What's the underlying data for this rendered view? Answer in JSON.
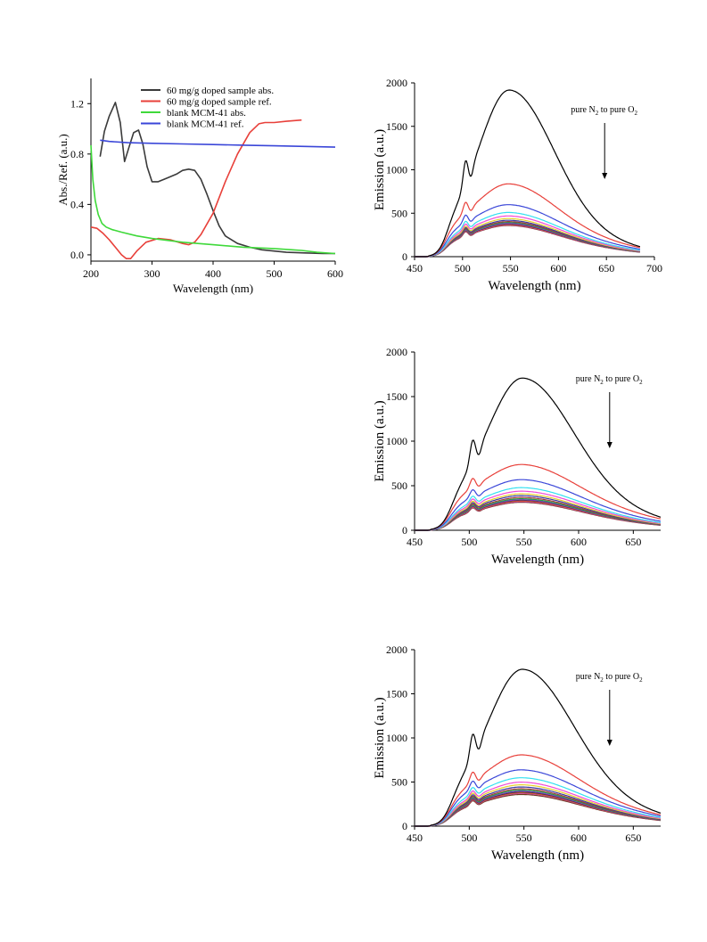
{
  "chart_data": [
    {
      "id": "absorption",
      "type": "line",
      "xlabel": "Wavelength (nm)",
      "ylabel": "Abs./Ref. (a.u.)",
      "xlim": [
        200,
        600
      ],
      "ylim": [
        -0.05,
        1.4
      ],
      "xticks": [
        200,
        300,
        400,
        500,
        600
      ],
      "yticks": [
        0.0,
        0.4,
        0.8,
        1.2
      ],
      "ytick_labels": [
        "0.0",
        "0.4",
        "0.8",
        "1.2"
      ],
      "legend_position": "top-right",
      "series": [
        {
          "name": "60 mg/g doped sample abs.",
          "color": "#3a3a3a",
          "x": [
            215,
            222,
            230,
            240,
            248,
            255,
            262,
            270,
            278,
            285,
            292,
            300,
            310,
            320,
            330,
            340,
            350,
            360,
            370,
            380,
            390,
            400,
            410,
            420,
            440,
            460,
            480,
            500,
            520,
            550,
            580,
            600
          ],
          "y": [
            0.78,
            0.98,
            1.1,
            1.21,
            1.05,
            0.74,
            0.85,
            0.97,
            0.99,
            0.88,
            0.7,
            0.58,
            0.58,
            0.6,
            0.62,
            0.64,
            0.67,
            0.68,
            0.67,
            0.6,
            0.48,
            0.35,
            0.23,
            0.15,
            0.09,
            0.06,
            0.04,
            0.03,
            0.02,
            0.015,
            0.01,
            0.01
          ]
        },
        {
          "name": "60 mg/g doped sample ref.",
          "color": "#e8403a",
          "x": [
            200,
            210,
            220,
            230,
            240,
            250,
            258,
            265,
            275,
            290,
            310,
            330,
            350,
            360,
            370,
            380,
            400,
            420,
            440,
            460,
            475,
            485,
            500,
            520,
            545
          ],
          "y": [
            0.22,
            0.21,
            0.17,
            0.12,
            0.06,
            0.0,
            -0.03,
            -0.03,
            0.03,
            0.1,
            0.13,
            0.12,
            0.09,
            0.08,
            0.1,
            0.16,
            0.33,
            0.58,
            0.8,
            0.97,
            1.04,
            1.05,
            1.05,
            1.06,
            1.07
          ]
        },
        {
          "name": "blank MCM-41 abs.",
          "color": "#3fd93a",
          "x": [
            200,
            203,
            207,
            212,
            218,
            225,
            235,
            250,
            275,
            300,
            350,
            400,
            450,
            500,
            530,
            545,
            570,
            600
          ],
          "y": [
            0.87,
            0.6,
            0.43,
            0.32,
            0.25,
            0.22,
            0.2,
            0.18,
            0.15,
            0.13,
            0.1,
            0.08,
            0.06,
            0.05,
            0.04,
            0.035,
            0.02,
            0.01
          ]
        },
        {
          "name": "blank MCM-41 ref.",
          "color": "#3a46d8",
          "x": [
            215,
            230,
            260,
            300,
            350,
            400,
            450,
            500,
            550,
            600
          ],
          "y": [
            0.91,
            0.9,
            0.89,
            0.885,
            0.88,
            0.875,
            0.87,
            0.865,
            0.86,
            0.855
          ]
        }
      ]
    },
    {
      "id": "emission-1",
      "type": "line",
      "xlabel": "Wavelength (nm)",
      "ylabel": "Emission (a.u.)",
      "xlim": [
        450,
        700
      ],
      "ylim": [
        0,
        2000
      ],
      "xticks": [
        450,
        500,
        550,
        600,
        650,
        700
      ],
      "yticks": [
        0,
        500,
        1000,
        1500,
        2000
      ],
      "x_end": 685,
      "annotation": "pure N",
      "annotation_sub1": "2",
      "annotation_mid": " to pure O",
      "annotation_sub2": "2",
      "peaks": [
        1920,
        840,
        600,
        510,
        470,
        440,
        420,
        405,
        395,
        385,
        378,
        372,
        365,
        360
      ],
      "series_colors": [
        "#000000",
        "#e8403a",
        "#3a46d8",
        "#33e0f0",
        "#f04ad8",
        "#e8d02a",
        "#3a3aa0",
        "#a03a3a",
        "#20a040",
        "#8a3ad8",
        "#3a3a3a",
        "#e85a2a",
        "#c040a0",
        "#6a3a1a"
      ]
    },
    {
      "id": "emission-2",
      "type": "line",
      "xlabel": "Wavelength (nm)",
      "ylabel": "Emission (a.u.)",
      "xlim": [
        450,
        675
      ],
      "ylim": [
        0,
        2000
      ],
      "xticks": [
        450,
        500,
        550,
        600,
        650
      ],
      "yticks": [
        0,
        500,
        1000,
        1500,
        2000
      ],
      "x_end": 675,
      "annotation": "pure N",
      "annotation_sub1": "2",
      "annotation_mid": " to pure O",
      "annotation_sub2": "2",
      "peaks": [
        1710,
        740,
        570,
        480,
        440,
        410,
        390,
        370,
        355,
        345,
        338,
        330,
        322,
        315
      ],
      "series_colors": [
        "#000000",
        "#e8403a",
        "#3a46d8",
        "#33e0f0",
        "#f04ad8",
        "#e8d02a",
        "#3a3aa0",
        "#a03a3a",
        "#20a040",
        "#8a3ad8",
        "#3a3a3a",
        "#e85a2a",
        "#c040a0",
        "#6a3a1a"
      ]
    },
    {
      "id": "emission-3",
      "type": "line",
      "xlabel": "Wavelength (nm)",
      "ylabel": "Emission (a.u.)",
      "xlim": [
        450,
        675
      ],
      "ylim": [
        0,
        2000
      ],
      "xticks": [
        450,
        500,
        550,
        600,
        650
      ],
      "yticks": [
        0,
        500,
        1000,
        1500,
        2000
      ],
      "x_end": 675,
      "annotation": "pure N",
      "annotation_sub1": "2",
      "annotation_mid": " to pure O",
      "annotation_sub2": "2",
      "peaks": [
        1780,
        810,
        640,
        550,
        500,
        470,
        445,
        425,
        410,
        398,
        388,
        380,
        372,
        360
      ],
      "series_colors": [
        "#000000",
        "#e8403a",
        "#3a46d8",
        "#33e0f0",
        "#f04ad8",
        "#e8d02a",
        "#3a3aa0",
        "#a03a3a",
        "#20a040",
        "#8a3ad8",
        "#3a3a3a",
        "#e85a2a",
        "#c040a0",
        "#6a3a1a"
      ]
    }
  ]
}
